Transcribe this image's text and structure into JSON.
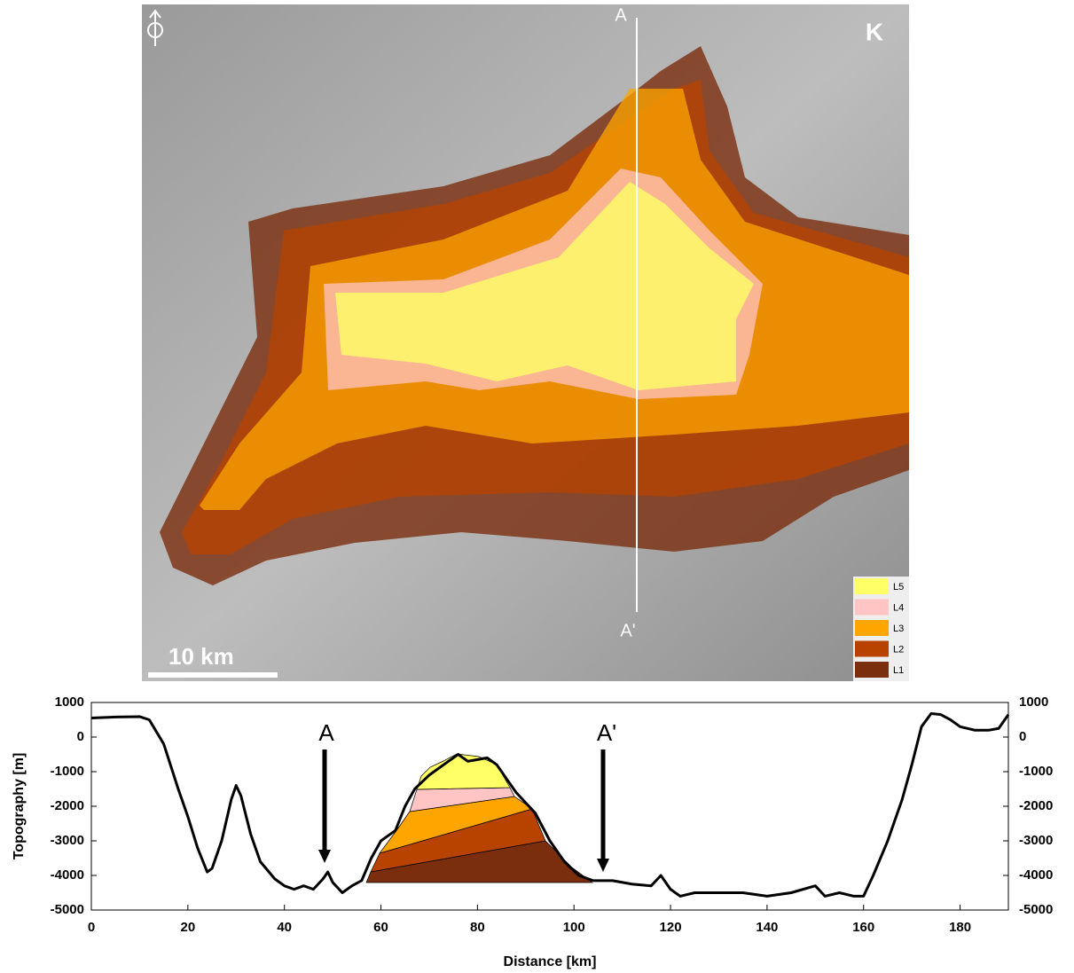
{
  "map": {
    "corner_label": "K",
    "section_start": "A",
    "section_end": "A'",
    "scale_label": "10 km",
    "legend": [
      {
        "label": "L5",
        "color": "#ffff66"
      },
      {
        "label": "L4",
        "color": "#ffc4c4"
      },
      {
        "label": "L3",
        "color": "#ffa500"
      },
      {
        "label": "L2",
        "color": "#b84300"
      },
      {
        "label": "L1",
        "color": "#7a2e0e"
      }
    ]
  },
  "chart_data": {
    "type": "line",
    "xlabel": "Distance [km]",
    "ylabel": "Topography [m]",
    "color": "#000000",
    "annotations": [
      "A",
      "A'"
    ],
    "x": [
      0,
      5,
      10,
      12,
      15,
      18,
      20,
      22,
      24,
      25,
      27,
      29,
      30,
      31,
      33,
      35,
      38,
      40,
      42,
      44,
      46,
      48,
      49,
      50,
      52,
      54,
      56,
      58,
      60,
      63,
      65,
      67,
      70,
      73,
      76,
      78,
      80,
      82,
      84,
      86,
      88,
      90,
      92,
      95,
      98,
      101,
      104,
      108,
      112,
      116,
      118,
      120,
      122,
      125,
      130,
      135,
      140,
      145,
      150,
      152,
      155,
      158,
      160,
      162,
      165,
      168,
      170,
      172,
      174,
      176,
      178,
      180,
      183,
      186,
      188,
      190
    ],
    "values": [
      550,
      580,
      590,
      500,
      -200,
      -1500,
      -2300,
      -3200,
      -3900,
      -3800,
      -3000,
      -1800,
      -1400,
      -1700,
      -2800,
      -3600,
      -4100,
      -4300,
      -4400,
      -4300,
      -4400,
      -4100,
      -3900,
      -4200,
      -4500,
      -4300,
      -4150,
      -3500,
      -3000,
      -2700,
      -2000,
      -1500,
      -1100,
      -800,
      -500,
      -700,
      -650,
      -600,
      -800,
      -1200,
      -1600,
      -1900,
      -2200,
      -3000,
      -3600,
      -4000,
      -4150,
      -4150,
      -4250,
      -4300,
      -4000,
      -4400,
      -4600,
      -4500,
      -4500,
      -4500,
      -4600,
      -4500,
      -4300,
      -4600,
      -4500,
      -4600,
      -4600,
      -4000,
      -3000,
      -1800,
      -800,
      300,
      680,
      650,
      500,
      300,
      200,
      200,
      250,
      650
    ],
    "xlim": [
      0,
      190
    ],
    "xticks": [
      0,
      20,
      40,
      60,
      80,
      100,
      120,
      140,
      160,
      180
    ],
    "ylim": [
      -5000,
      1000
    ],
    "yticks": [
      1000,
      0,
      -1000,
      -2000,
      -3000,
      -4000,
      -5000
    ]
  }
}
